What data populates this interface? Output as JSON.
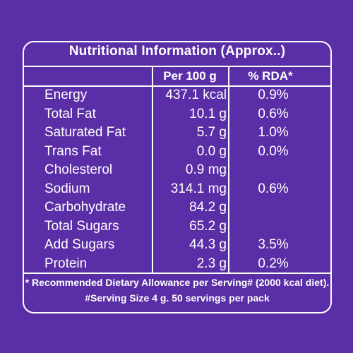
{
  "panel": {
    "title": "Nutritional Information (Approx..)",
    "col_per100": "Per 100 g",
    "col_rda": "% RDA*"
  },
  "rows": [
    {
      "nutrient": "Energy",
      "amount": "437.1 kcal",
      "rda": "0.9%"
    },
    {
      "nutrient": "Total Fat",
      "amount": "10.1 g",
      "rda": "0.6%"
    },
    {
      "nutrient": "Saturated Fat",
      "amount": "5.7 g",
      "rda": "1.0%"
    },
    {
      "nutrient": "Trans Fat",
      "amount": "0.0 g",
      "rda": "0.0%"
    },
    {
      "nutrient": "Cholesterol",
      "amount": "0.9 mg",
      "rda": ""
    },
    {
      "nutrient": "Sodium",
      "amount": "314.1 mg",
      "rda": "0.6%"
    },
    {
      "nutrient": "Carbohydrate",
      "amount": "84.2 g",
      "rda": ""
    },
    {
      "nutrient": "Total Sugars",
      "amount": "65.2 g",
      "rda": ""
    },
    {
      "nutrient": "Add Sugars",
      "amount": "44.3 g",
      "rda": "3.5%"
    },
    {
      "nutrient": "Protein",
      "amount": "2.3 g",
      "rda": "0.2%"
    }
  ],
  "footnote1": "* Recommended Dietary Allowance per Serving# (2000 kcal diet).",
  "footnote2": "#Serving Size 4 g. 50 servings per pack"
}
